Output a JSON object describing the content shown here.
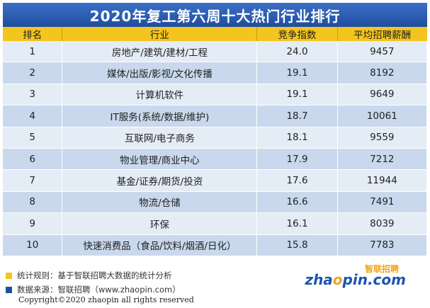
{
  "title": "2020年复工第六周十大热门行业排行",
  "columns": [
    "排名",
    "行业",
    "竞争指数",
    "平均招聘薪酬"
  ],
  "rows": [
    {
      "rank": "1",
      "industry": "房地产/建筑/建材/工程",
      "index": "24.0",
      "salary": "9457"
    },
    {
      "rank": "2",
      "industry": "媒体/出版/影视/文化传播",
      "index": "19.1",
      "salary": "8192"
    },
    {
      "rank": "3",
      "industry": "计算机软件",
      "index": "19.1",
      "salary": "9649"
    },
    {
      "rank": "4",
      "industry": "IT服务(系统/数据/维护)",
      "index": "18.7",
      "salary": "10061"
    },
    {
      "rank": "5",
      "industry": "互联网/电子商务",
      "index": "18.1",
      "salary": "9559"
    },
    {
      "rank": "6",
      "industry": "物业管理/商业中心",
      "index": "17.9",
      "salary": "7212"
    },
    {
      "rank": "7",
      "industry": "基金/证券/期货/投资",
      "index": "17.6",
      "salary": "11944"
    },
    {
      "rank": "8",
      "industry": "物流/仓储",
      "index": "16.6",
      "salary": "7491"
    },
    {
      "rank": "9",
      "industry": "环保",
      "index": "16.1",
      "salary": "8039"
    },
    {
      "rank": "10",
      "industry": "快速消费品（食品/饮料/烟酒/日化）",
      "index": "15.8",
      "salary": "7783"
    }
  ],
  "footnotes": {
    "rule": "统计规则：基于智联招聘大数据的统计分析",
    "source": "数据来源：智联招聘（www.zhaopin.com）"
  },
  "logo": {
    "cn": "智联招聘",
    "en_prefix": "zha",
    "en_o": "o",
    "en_suffix": "pin.com"
  },
  "copyright": "Copyright©2020 zhaopin all rights reserved",
  "colors": {
    "title_bg": "#2a5db0",
    "header_bg": "#f4c51f",
    "row_light": "#e4ecf6",
    "row_dark": "#c9d8ec",
    "marker_yellow": "#f4c51f",
    "marker_blue": "#1f4e9e"
  }
}
